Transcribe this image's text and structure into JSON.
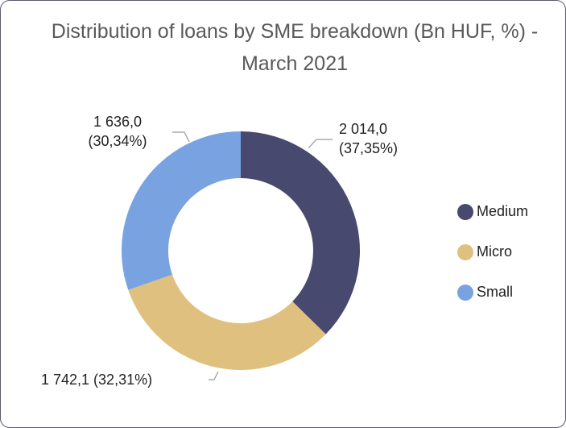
{
  "chart_data": {
    "type": "donut",
    "title": "Distribution of loans by SME breakdown (Bn HUF, %) - March 2021",
    "categories": [
      "Medium",
      "Micro",
      "Small"
    ],
    "values": [
      2014.0,
      1742.1,
      1636.0
    ],
    "value_labels": [
      "2 014,0 (37,35%)",
      "1 742,1 (32,31%)",
      "1 636,0 (30,34%)"
    ],
    "colors": [
      "#474a6e",
      "#e0c07e",
      "#78a3e0"
    ],
    "legend": "right"
  }
}
